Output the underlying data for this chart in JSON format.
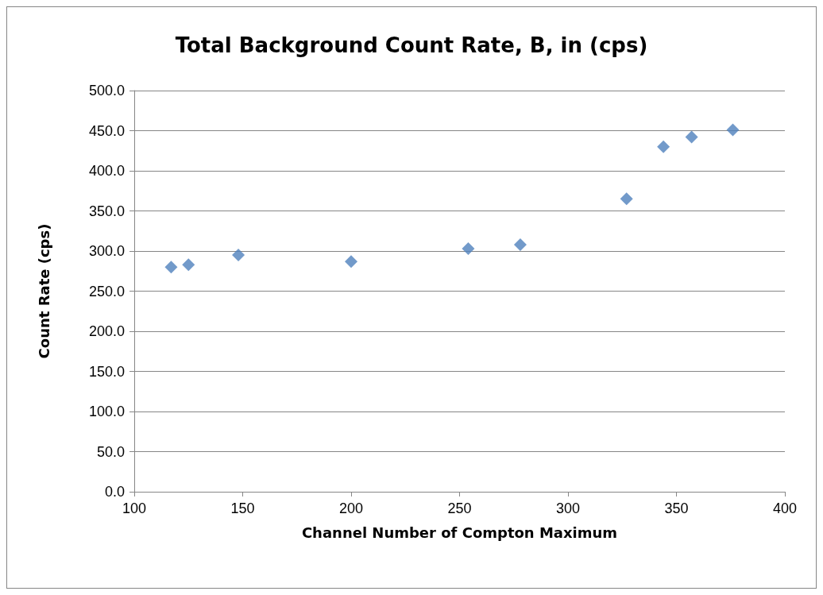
{
  "chart_data": {
    "type": "scatter",
    "title": "Total Background Count Rate, B, in (cps)",
    "xlabel": "Channel Number of Compton Maximum",
    "ylabel": "Count Rate (cps)",
    "x": [
      117,
      125,
      148,
      200,
      254,
      278,
      327,
      344,
      357,
      376
    ],
    "series": [
      {
        "color": "#4f81bd",
        "values": [
          280,
          283,
          295,
          287,
          303,
          308,
          365,
          430,
          442,
          451
        ]
      }
    ],
    "xlim": [
      100,
      400
    ],
    "xticks": [
      100,
      150,
      200,
      250,
      300,
      350,
      400
    ],
    "ylim": [
      0,
      500
    ],
    "yticks": [
      {
        "value": 0,
        "label": "0.0"
      },
      {
        "value": 50,
        "label": "50.0"
      },
      {
        "value": 100,
        "label": "100.0"
      },
      {
        "value": 150,
        "label": "150.0"
      },
      {
        "value": 200,
        "label": "200.0"
      },
      {
        "value": 250,
        "label": "250.0"
      },
      {
        "value": 300,
        "label": "300.0"
      },
      {
        "value": 350,
        "label": "350.0"
      },
      {
        "value": 400,
        "label": "400.0"
      },
      {
        "value": 450,
        "label": "450.0"
      },
      {
        "value": 500,
        "label": "500.0"
      }
    ],
    "grid": "y",
    "marker": "diamond"
  }
}
